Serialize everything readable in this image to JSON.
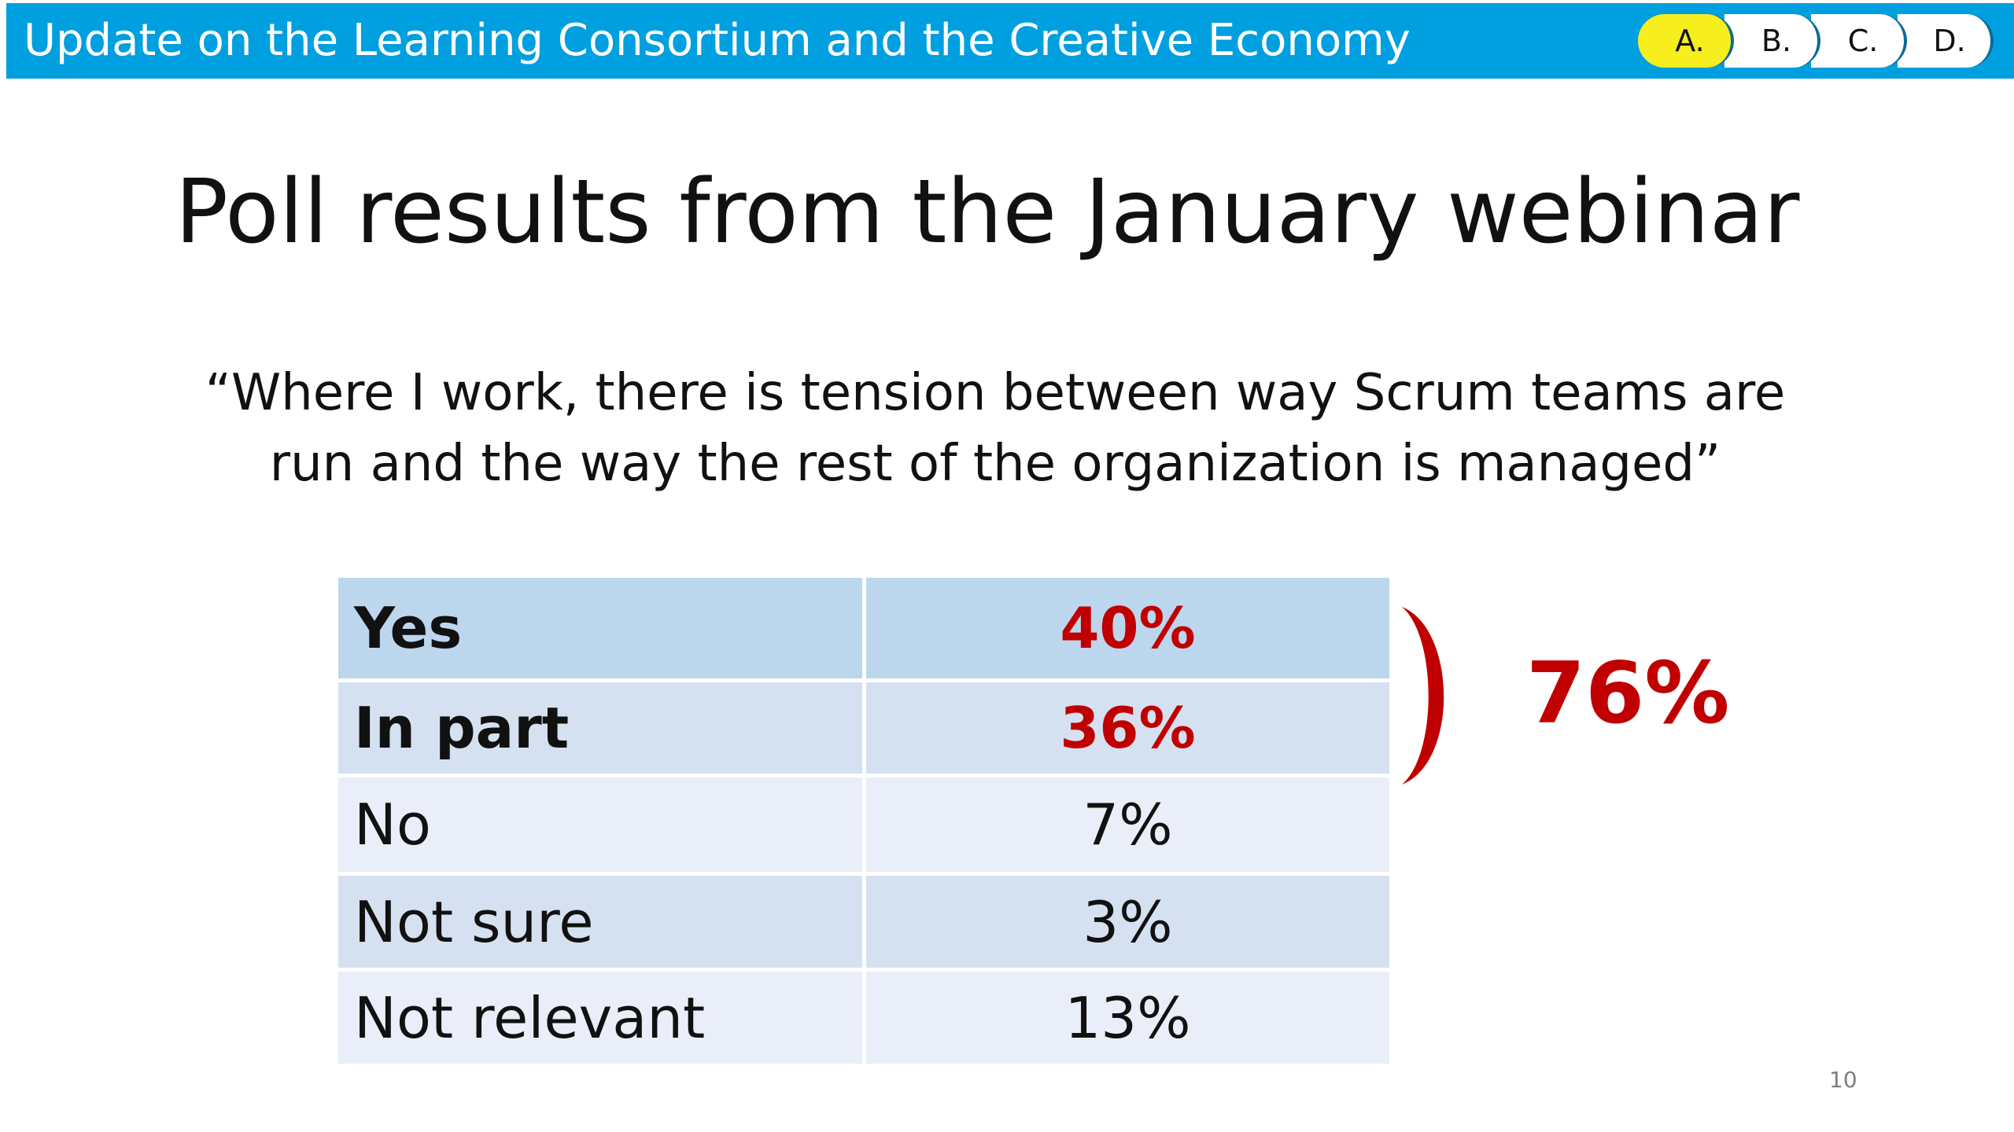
{
  "header": {
    "title": "Update on the Learning Consortium and the Creative Economy",
    "tabs": [
      {
        "label": "A.",
        "active": true
      },
      {
        "label": "B.",
        "active": false
      },
      {
        "label": "C.",
        "active": false
      },
      {
        "label": "D.",
        "active": false
      }
    ],
    "bar_color": "#009fdf",
    "active_tab_color": "#f6ee1d"
  },
  "slide": {
    "title": "Poll results from the January webinar",
    "question_line1": "“Where I work, there is tension between way Scrum teams are",
    "question_line2": "run and the way the rest of the organization is managed”",
    "total": "76%",
    "page_number": "10",
    "accent_color": "#c00000"
  },
  "results": [
    {
      "answer": "Yes",
      "percent": "40%",
      "emphasized": true
    },
    {
      "answer": "In part",
      "percent": "36%",
      "emphasized": true
    },
    {
      "answer": "No",
      "percent": "7%",
      "emphasized": false
    },
    {
      "answer": "Not sure",
      "percent": "3%",
      "emphasized": false
    },
    {
      "answer": "Not relevant",
      "percent": "13%",
      "emphasized": false
    }
  ]
}
